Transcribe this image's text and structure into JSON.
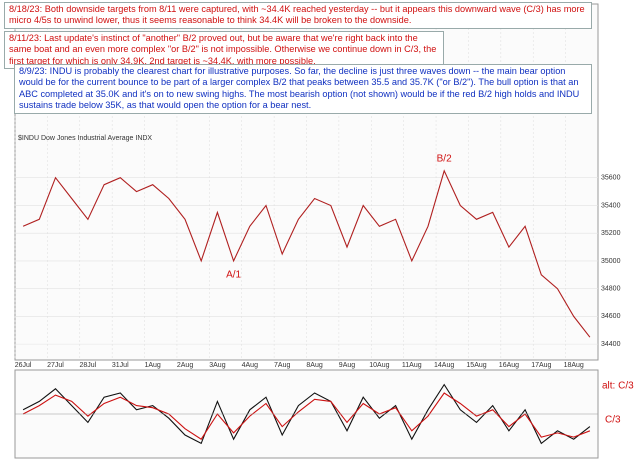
{
  "notes": [
    "8/18/23:  Both downside targets from 8/11 were captured, with ~34.4K reached yesterday -- but it appears this downward wave (C/3) has more micro 4/5s to unwind lower, thus it seems reasonable to think 34.4K will be broken to the downside.",
    "8/11/23:  Last update's instinct of \"another\" B/2 proved out, but be aware that we're right back into the same boat and an even more complex \"or B/2\" is not impossible.  Otherwise we continue down in C/3, the first target for which is only 34.9K, 2nd target is ~34.4K, with more possible.",
    "8/9/23:  INDU is probably the clearest chart for illustrative purposes.  So far, the decline is just three waves down -- the main bear option would be for the current bounce to be part of a larger complex B/2 that peaks between 35.5 and 35.7K (\"or B/2\").  The bull option is that an ABC completed at 35.0K and it's on to new swing highs.  The most bearish option (not shown) would be if the red B/2 high holds and INDU sustains trade below 35K, as that would open the option for a bear nest."
  ],
  "chart_data": [
    {
      "type": "line",
      "title": "$INDU Dow Jones Industrial Average INDX",
      "categories": [
        "26Jul",
        null,
        "27Jul",
        null,
        "28Jul",
        null,
        "31Jul",
        null,
        "1Aug",
        null,
        "2Aug",
        null,
        "3Aug",
        null,
        "4Aug",
        null,
        "7Aug",
        null,
        "8Aug",
        null,
        "9Aug",
        null,
        "10Aug",
        null,
        "11Aug",
        null,
        "14Aug",
        null,
        "15Aug",
        null,
        "16Aug",
        null,
        "17Aug",
        null,
        "18Aug",
        null
      ],
      "values": [
        35250,
        35300,
        35600,
        35450,
        35300,
        35550,
        35600,
        35500,
        35550,
        35450,
        35300,
        35000,
        35350,
        35000,
        35250,
        35400,
        35050,
        35300,
        35450,
        35400,
        35100,
        35400,
        35250,
        35300,
        35000,
        35250,
        35650,
        35400,
        35300,
        35350,
        35100,
        35250,
        34900,
        34800,
        34600,
        34450
      ],
      "color": "#b02020",
      "ylim": [
        34300,
        35800
      ],
      "yticks": [
        34400,
        34600,
        34800,
        35000,
        35200,
        35400,
        35600
      ],
      "grid": true,
      "annotations": [
        "A/1",
        "B/2"
      ]
    },
    {
      "type": "line",
      "series": [
        {
          "color": "#111111",
          "values": [
            10,
            30,
            60,
            20,
            -20,
            40,
            50,
            10,
            20,
            -10,
            -50,
            -70,
            30,
            -60,
            10,
            40,
            -50,
            20,
            50,
            30,
            -40,
            40,
            -10,
            20,
            -60,
            10,
            70,
            10,
            -20,
            20,
            -40,
            10,
            -70,
            -40,
            -60,
            -30
          ]
        },
        {
          "color": "#cc1111",
          "values": [
            0,
            20,
            45,
            30,
            -5,
            25,
            40,
            20,
            15,
            0,
            -35,
            -60,
            0,
            -45,
            -5,
            25,
            -30,
            5,
            35,
            30,
            -20,
            25,
            0,
            15,
            -40,
            -5,
            50,
            25,
            -5,
            10,
            -30,
            0,
            -55,
            -45,
            -55,
            -40
          ]
        }
      ],
      "ylim": [
        -100,
        100
      ],
      "annotations": [
        "alt: C/3",
        "C/3"
      ]
    }
  ]
}
